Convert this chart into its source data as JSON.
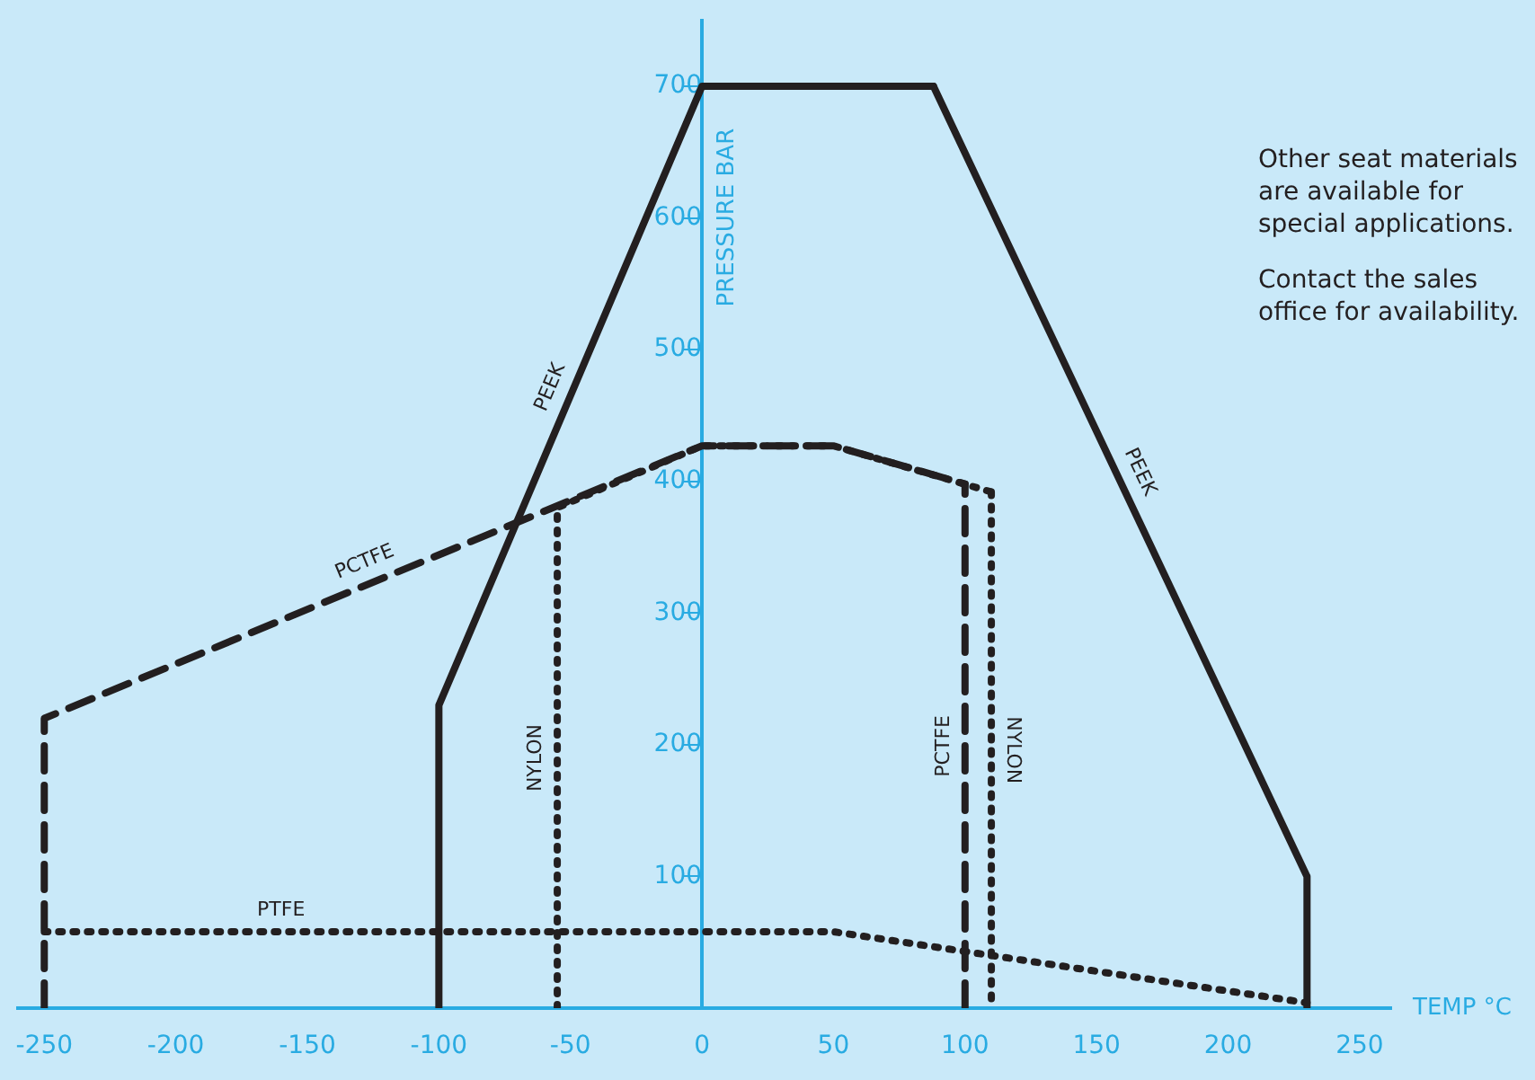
{
  "chart_data": {
    "type": "line",
    "xlabel": "TEMP °C",
    "ylabel": "PRESSURE BAR",
    "xlim": [
      -260,
      262
    ],
    "ylim": [
      0,
      750
    ],
    "xticks": [
      -250,
      -200,
      -150,
      -100,
      -50,
      0,
      50,
      100,
      150,
      200,
      250
    ],
    "yticks": [
      100,
      200,
      300,
      400,
      500,
      600,
      700
    ],
    "grid": false,
    "legend": false,
    "marker": "none",
    "series": [
      {
        "name": "PEEK",
        "color": "#231f20",
        "line_style": "solid",
        "x": [
          -100,
          -100,
          0,
          88
        ],
        "values": [
          0,
          230,
          700,
          700
        ]
      },
      {
        "name": "PEEK",
        "color": "#231f20",
        "line_style": "solid",
        "x": [
          88,
          230,
          230
        ],
        "values": [
          700,
          100,
          0
        ]
      },
      {
        "name": "PCTFE",
        "color": "#231f20",
        "line_style": "dashed",
        "x": [
          -250,
          -250,
          0,
          50,
          100
        ],
        "values": [
          0,
          220,
          427,
          427,
          398
        ]
      },
      {
        "name": "PCTFE",
        "color": "#231f20",
        "line_style": "dashed",
        "x": [
          100,
          100
        ],
        "values": [
          0,
          398
        ]
      },
      {
        "name": "NYLON",
        "color": "#231f20",
        "line_style": "dotted",
        "x": [
          -55,
          -55,
          0,
          50,
          110
        ],
        "values": [
          0,
          380,
          427,
          427,
          392
        ]
      },
      {
        "name": "NYLON",
        "color": "#231f20",
        "line_style": "dotted",
        "x": [
          110,
          110
        ],
        "values": [
          392,
          0
        ]
      },
      {
        "name": "PTFE",
        "color": "#231f20",
        "line_style": "dotted",
        "x": [
          -250,
          50,
          230
        ],
        "values": [
          58,
          58,
          4
        ]
      }
    ],
    "annotations": [
      "Other seat materials are available for special applications.",
      "Contact the sales office for availability."
    ]
  }
}
